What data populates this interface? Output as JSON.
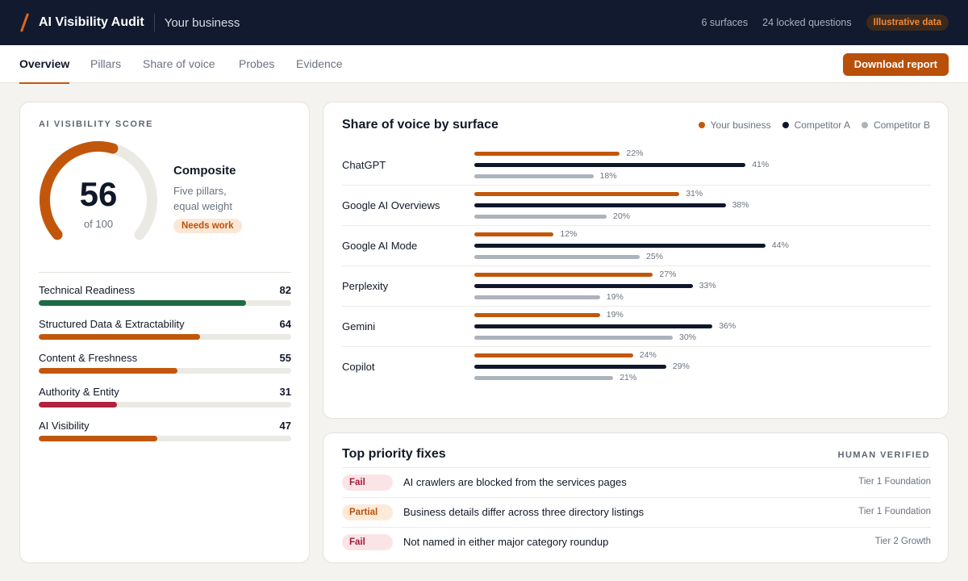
{
  "header": {
    "app_title": "AI Visibility Audit",
    "business": "Your business",
    "surfaces": "6 surfaces",
    "locked_questions": "24 locked questions",
    "badge": "Illustrative data"
  },
  "nav": {
    "tabs": [
      {
        "label": "Overview",
        "active": true
      },
      {
        "label": "Pillars",
        "active": false
      },
      {
        "label": "Share of voice",
        "active": false
      },
      {
        "label": "Probes",
        "active": false
      },
      {
        "label": "Evidence",
        "active": false
      }
    ],
    "download_label": "Download report"
  },
  "score": {
    "eyebrow": "AI VISIBILITY SCORE",
    "value": "56",
    "of": "of 100",
    "percent": 56,
    "composite_title": "Composite",
    "composite_desc_1": "Five pillars,",
    "composite_desc_2": "equal weight",
    "status": "Needs work",
    "pillars": [
      {
        "name": "Technical Readiness",
        "value": "82",
        "score": 82,
        "color": "#1c6b45"
      },
      {
        "name": "Structured Data & Extractability",
        "value": "64",
        "score": 64,
        "color": "#c2570c"
      },
      {
        "name": "Content & Freshness",
        "value": "55",
        "score": 55,
        "color": "#c2570c"
      },
      {
        "name": "Authority & Entity",
        "value": "31",
        "score": 31,
        "color": "#b0233f"
      },
      {
        "name": "AI Visibility",
        "value": "47",
        "score": 47,
        "color": "#c2570c"
      }
    ]
  },
  "share_of_voice": {
    "title": "Share of voice by surface",
    "legend": [
      {
        "name": "Your business",
        "color": "#c2570c"
      },
      {
        "name": "Competitor A",
        "color": "#0f172a"
      },
      {
        "name": "Competitor B",
        "color": "#adb3bd"
      }
    ],
    "chart_data": {
      "type": "bar",
      "categories": [
        "ChatGPT",
        "Google AI Overviews",
        "Google AI Mode",
        "Perplexity",
        "Gemini",
        "Copilot"
      ],
      "series": [
        {
          "name": "Your business",
          "values": [
            22,
            31,
            12,
            27,
            19,
            24
          ]
        },
        {
          "name": "Competitor A",
          "values": [
            41,
            38,
            44,
            33,
            36,
            29
          ]
        },
        {
          "name": "Competitor B",
          "values": [
            18,
            20,
            25,
            19,
            30,
            21
          ]
        }
      ],
      "unit": "%"
    }
  },
  "fixes": {
    "title": "Top priority fixes",
    "verified": "HUMAN VERIFIED",
    "items": [
      {
        "status": "Fail",
        "kind": "fail",
        "text": "AI crawlers are blocked from the services pages",
        "tier": "Tier 1 Foundation"
      },
      {
        "status": "Partial",
        "kind": "partial",
        "text": "Business details differ across three directory listings",
        "tier": "Tier 1 Foundation"
      },
      {
        "status": "Fail",
        "kind": "fail",
        "text": "Not named in either major category roundup",
        "tier": "Tier 2 Growth"
      }
    ]
  }
}
